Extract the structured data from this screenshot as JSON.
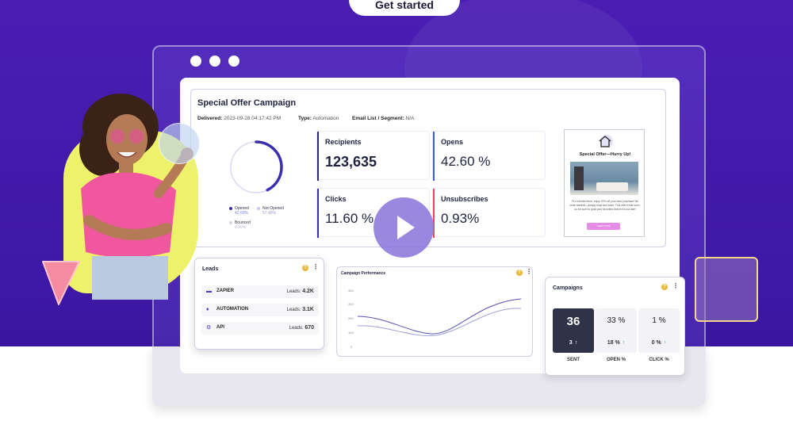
{
  "hero": {
    "cta_label": "Get started"
  },
  "campaign": {
    "title": "Special Offer Campaign",
    "delivered_label": "Delivered:",
    "delivered_value": "2023-09-28 04:17:42 PM",
    "type_label": "Type:",
    "type_value": "Automation",
    "segment_label": "Email List / Segment:",
    "segment_value": "N/A",
    "legend": [
      {
        "label": "Opened",
        "value": "42.60%",
        "color": "#3b2fb0"
      },
      {
        "label": "Not Opened",
        "value": "57.40%",
        "color": "#c9c6ee"
      },
      {
        "label": "Bounced",
        "value": "0.00%",
        "color": "#d8d6ea"
      }
    ],
    "opened_fraction": 0.426,
    "stats": {
      "recipients": {
        "label": "Recipients",
        "value": "123,635"
      },
      "opens": {
        "label": "Opens",
        "value": "42.60 %"
      },
      "clicks": {
        "label": "Clicks",
        "value": "11.60 %"
      },
      "unsubscribes": {
        "label": "Unsubscribes",
        "value": "0.93%"
      }
    },
    "email_preview": {
      "title": "Special Offer—Hurry Up!",
      "body": "For a limited time, enjoy 20% off your next purchase! No code needed—simply shop and save. This offer ends soon, so be sure to grab your favorites before it's too late!",
      "button": "SHOP NOW"
    }
  },
  "leads": {
    "title": "Leads",
    "rows": [
      {
        "name": "ZAPIER",
        "label": "Leads:",
        "value": "4.2K"
      },
      {
        "name": "AUTOMATION",
        "label": "Leads:",
        "value": "3.1K"
      },
      {
        "name": "API",
        "label": "Leads:",
        "value": "670"
      }
    ]
  },
  "performance": {
    "title": "Campaign Performance",
    "y_ticks": [
      "400",
      "300",
      "200",
      "100",
      "0"
    ]
  },
  "campaigns": {
    "title": "Campaigns",
    "boxes": [
      {
        "main": "36",
        "sub": "3",
        "label": "SENT"
      },
      {
        "main": "33 %",
        "sub": "18 %",
        "label": "OPEN %"
      },
      {
        "main": "1 %",
        "sub": "0 %",
        "label": "CLICK %"
      }
    ]
  },
  "icons": {
    "info": "info-icon",
    "more": "kebab-menu-icon",
    "arrow_up": "↑",
    "play": "play-icon"
  },
  "colors": {
    "hero_bg": "#4a1db3",
    "accent": "#3b2fb0",
    "opens_bar": "#3f5fc0",
    "unsub_bar": "#e04a5a"
  }
}
